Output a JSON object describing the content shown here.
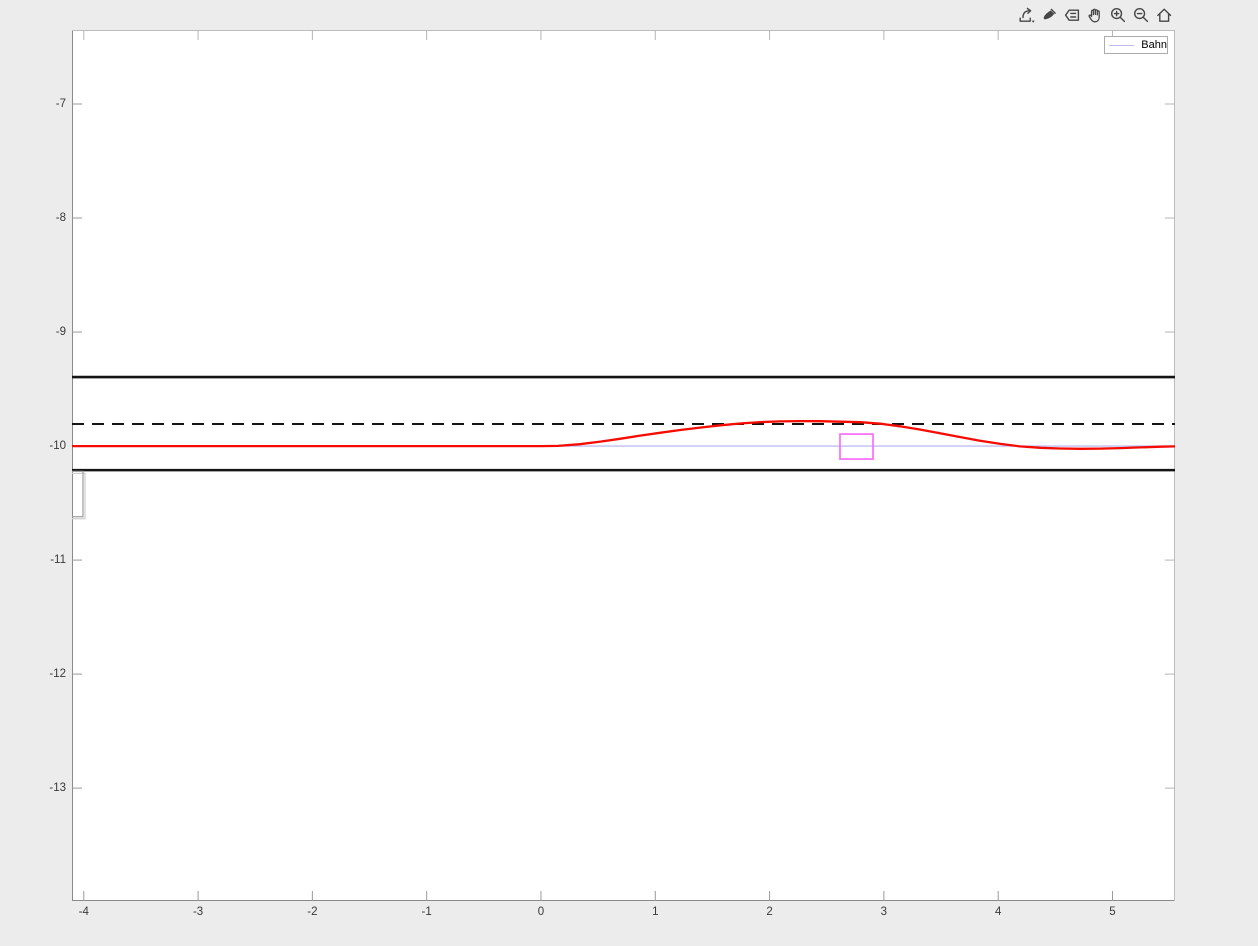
{
  "window": {
    "background": "#ececec",
    "plot_background": "#ffffff"
  },
  "toolbar": {
    "icons": [
      {
        "name": "export"
      },
      {
        "name": "brush"
      },
      {
        "name": "datatips"
      },
      {
        "name": "pan"
      },
      {
        "name": "zoom-in"
      },
      {
        "name": "zoom-out"
      },
      {
        "name": "restore-view"
      }
    ]
  },
  "legend": {
    "position": "top-right",
    "items": [
      {
        "label": "Bahn",
        "color": "#bdbdf4"
      }
    ]
  },
  "chart_data": {
    "type": "line",
    "title": "",
    "xlabel": "",
    "ylabel": "",
    "xlim": [
      -4.103,
      5.547
    ],
    "ylim": [
      -13.99,
      -6.351
    ],
    "x_ticks": [
      -4,
      -3,
      -2,
      -1,
      0,
      1,
      2,
      3,
      4,
      5
    ],
    "x_tick_labels": [
      "-4",
      "-3",
      "-2",
      "-1",
      "0",
      "1",
      "2",
      "3",
      "4",
      "5"
    ],
    "y_ticks": [
      -13,
      -12,
      -11,
      -10,
      -9,
      -8,
      -7
    ],
    "y_tick_labels": [
      "-13",
      "-12",
      "-11",
      "-10",
      "-9",
      "-8",
      "-7"
    ],
    "grid": false,
    "legend_position": "top-right",
    "axis": {
      "spine_color_left_bottom": "#8a8a8a",
      "spine_color_top_right": "#bdbdbd",
      "tick_color": "#9a9a9a",
      "tick_color_secondary": "#b5b5b5",
      "tick_length": 10,
      "label_color": "#3a3a3a"
    },
    "series": [
      {
        "name": "Bahn",
        "type": "hline",
        "y": -10.0,
        "color": "#bdbdf4",
        "width": 1.3,
        "in_legend": true
      },
      {
        "name": "lane-boundary-upper",
        "type": "hline",
        "y": -9.395,
        "color": "#141414",
        "width": 2.6
      },
      {
        "name": "lane-center-dashed",
        "type": "hline",
        "y": -9.807,
        "color": "#141414",
        "width": 2.0,
        "dash": "12,8"
      },
      {
        "name": "lane-boundary-lower",
        "type": "hline",
        "y": -10.211,
        "color": "#141414",
        "width": 2.6
      },
      {
        "name": "trajectory",
        "type": "line",
        "color": "#f50b00",
        "width": 2.3,
        "x": [
          -4.1,
          -3.0,
          -2.0,
          -1.0,
          -0.5,
          0.0,
          0.15,
          0.34,
          0.52,
          0.69,
          0.86,
          1.04,
          1.21,
          1.39,
          1.57,
          1.74,
          1.92,
          2.09,
          2.27,
          2.44,
          2.62,
          2.79,
          2.97,
          3.14,
          3.32,
          3.49,
          3.67,
          3.84,
          4.02,
          4.19,
          4.37,
          4.54,
          4.72,
          4.89,
          5.07,
          5.24,
          5.42,
          5.55
        ],
        "y": [
          -10.0,
          -10.0,
          -10.0,
          -10.0,
          -10.0,
          -10.0,
          -9.999,
          -9.984,
          -9.961,
          -9.936,
          -9.91,
          -9.884,
          -9.86,
          -9.838,
          -9.818,
          -9.802,
          -9.79,
          -9.784,
          -9.781,
          -9.782,
          -9.786,
          -9.791,
          -9.804,
          -9.827,
          -9.856,
          -9.888,
          -9.921,
          -9.953,
          -9.981,
          -10.003,
          -10.015,
          -10.021,
          -10.024,
          -10.022,
          -10.018,
          -10.012,
          -10.006,
          -10.003
        ]
      }
    ],
    "rects": [
      {
        "name": "obstacle-box",
        "x0": 2.616,
        "x1": 2.905,
        "y0": -10.114,
        "y1": -9.895,
        "color": "#fb6cfb",
        "width": 1.7
      },
      {
        "name": "left-edge-box",
        "x0": -4.19,
        "x1": -4.007,
        "y0": -10.62,
        "y1": -10.222,
        "color": "#9d9d9d",
        "width": 1.2,
        "shadow_color": "#cdcdcd"
      }
    ]
  }
}
